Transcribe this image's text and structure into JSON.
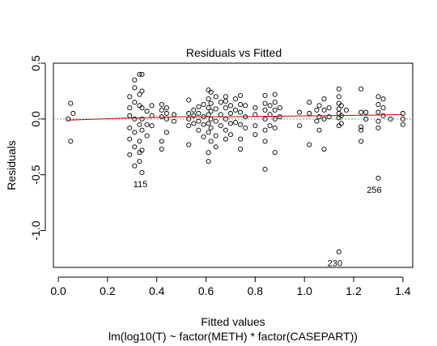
{
  "chart_data": {
    "type": "scatter",
    "title": "Residuals vs Fitted",
    "xlabel": "Fitted values",
    "subtitle": "lm(log10(T) ~ factor(METH) * factor(CASEPART))",
    "ylabel": "Residuals",
    "xlim": [
      -0.02,
      1.44
    ],
    "ylim": [
      -1.33,
      0.5
    ],
    "xticks": [
      "0.0",
      "0.2",
      "0.4",
      "0.6",
      "0.8",
      "1.0",
      "1.2",
      "1.4"
    ],
    "xtick_values": [
      0,
      0.2,
      0.4,
      0.6,
      0.8,
      1.0,
      1.2,
      1.4
    ],
    "yticks": [
      "-1.0",
      "-0.5",
      "0.0",
      "0.5"
    ],
    "ytick_values": [
      -1.0,
      -0.5,
      0.0,
      0.5
    ],
    "point_symbol": "open-circle",
    "smoother_color": "#cc0000",
    "reference_line": {
      "y": 0,
      "style": "dotted",
      "color": "#888888"
    },
    "smoother": {
      "x": [
        0.04,
        0.3,
        0.5,
        0.7,
        0.9,
        1.1,
        1.3,
        1.4
      ],
      "y": [
        -0.01,
        0.01,
        0.02,
        0.02,
        0.025,
        0.03,
        0.035,
        0.04
      ]
    },
    "labels": [
      {
        "text": "115",
        "x": 0.35,
        "y": -0.48
      },
      {
        "text": "256",
        "x": 1.3,
        "y": -0.53
      },
      {
        "text": "230",
        "x": 1.14,
        "y": -1.19
      }
    ],
    "points": [
      [
        0.04,
        0.0
      ],
      [
        0.05,
        -0.2
      ],
      [
        0.05,
        0.14
      ],
      [
        0.06,
        0.05
      ],
      [
        0.29,
        0.2
      ],
      [
        0.29,
        0.1
      ],
      [
        0.29,
        0.03
      ],
      [
        0.29,
        -0.08
      ],
      [
        0.29,
        -0.18
      ],
      [
        0.29,
        -0.32
      ],
      [
        0.31,
        0.35
      ],
      [
        0.31,
        0.28
      ],
      [
        0.31,
        0.15
      ],
      [
        0.31,
        0.0
      ],
      [
        0.31,
        -0.12
      ],
      [
        0.31,
        -0.25
      ],
      [
        0.31,
        -0.42
      ],
      [
        0.33,
        0.4
      ],
      [
        0.33,
        0.22
      ],
      [
        0.33,
        0.12
      ],
      [
        0.33,
        -0.05
      ],
      [
        0.33,
        -0.2
      ],
      [
        0.33,
        -0.3
      ],
      [
        0.33,
        -0.38
      ],
      [
        0.34,
        0.4
      ],
      [
        0.34,
        0.25
      ],
      [
        0.34,
        0.1
      ],
      [
        0.34,
        0.0
      ],
      [
        0.34,
        -0.1
      ],
      [
        0.34,
        -0.28
      ],
      [
        0.34,
        -0.48
      ],
      [
        0.36,
        0.07
      ],
      [
        0.36,
        -0.05
      ],
      [
        0.36,
        -0.15
      ],
      [
        0.38,
        0.12
      ],
      [
        0.38,
        0.03
      ],
      [
        0.38,
        -0.06
      ],
      [
        0.42,
        0.13
      ],
      [
        0.42,
        0.08
      ],
      [
        0.42,
        0.02
      ],
      [
        0.42,
        -0.2
      ],
      [
        0.42,
        -0.27
      ],
      [
        0.44,
        0.1
      ],
      [
        0.44,
        0.05
      ],
      [
        0.44,
        0.0
      ],
      [
        0.44,
        -0.12
      ],
      [
        0.47,
        0.04
      ],
      [
        0.47,
        -0.02
      ],
      [
        0.53,
        0.17
      ],
      [
        0.53,
        0.05
      ],
      [
        0.53,
        0.0
      ],
      [
        0.53,
        -0.06
      ],
      [
        0.53,
        -0.23
      ],
      [
        0.55,
        0.08
      ],
      [
        0.55,
        0.03
      ],
      [
        0.55,
        -0.04
      ],
      [
        0.57,
        0.11
      ],
      [
        0.57,
        0.05
      ],
      [
        0.57,
        -0.02
      ],
      [
        0.57,
        -0.1
      ],
      [
        0.59,
        0.13
      ],
      [
        0.59,
        0.02
      ],
      [
        0.59,
        -0.05
      ],
      [
        0.59,
        -0.16
      ],
      [
        0.61,
        0.26
      ],
      [
        0.61,
        0.18
      ],
      [
        0.61,
        0.1
      ],
      [
        0.61,
        0.04
      ],
      [
        0.61,
        -0.04
      ],
      [
        0.61,
        -0.12
      ],
      [
        0.61,
        -0.3
      ],
      [
        0.61,
        -0.38
      ],
      [
        0.62,
        0.24
      ],
      [
        0.62,
        0.14
      ],
      [
        0.62,
        0.07
      ],
      [
        0.62,
        0.0
      ],
      [
        0.62,
        -0.08
      ],
      [
        0.62,
        -0.2
      ],
      [
        0.64,
        0.2
      ],
      [
        0.64,
        0.09
      ],
      [
        0.64,
        -0.02
      ],
      [
        0.64,
        -0.15
      ],
      [
        0.64,
        -0.25
      ],
      [
        0.66,
        0.15
      ],
      [
        0.66,
        0.04
      ],
      [
        0.66,
        -0.06
      ],
      [
        0.68,
        0.2
      ],
      [
        0.68,
        0.16
      ],
      [
        0.68,
        0.1
      ],
      [
        0.68,
        0.0
      ],
      [
        0.68,
        -0.1
      ],
      [
        0.68,
        -0.18
      ],
      [
        0.7,
        0.12
      ],
      [
        0.7,
        0.05
      ],
      [
        0.7,
        -0.04
      ],
      [
        0.7,
        -0.14
      ],
      [
        0.72,
        0.18
      ],
      [
        0.72,
        0.08
      ],
      [
        0.72,
        -0.03
      ],
      [
        0.74,
        0.21
      ],
      [
        0.74,
        0.13
      ],
      [
        0.74,
        0.06
      ],
      [
        0.74,
        -0.05
      ],
      [
        0.74,
        -0.18
      ],
      [
        0.74,
        -0.27
      ],
      [
        0.76,
        0.12
      ],
      [
        0.76,
        0.02
      ],
      [
        0.76,
        -0.08
      ],
      [
        0.8,
        0.1
      ],
      [
        0.8,
        0.04
      ],
      [
        0.8,
        -0.06
      ],
      [
        0.8,
        -0.14
      ],
      [
        0.84,
        0.21
      ],
      [
        0.84,
        0.14
      ],
      [
        0.84,
        0.08
      ],
      [
        0.84,
        0.0
      ],
      [
        0.84,
        -0.1
      ],
      [
        0.84,
        -0.2
      ],
      [
        0.84,
        -0.45
      ],
      [
        0.86,
        0.12
      ],
      [
        0.86,
        0.04
      ],
      [
        0.86,
        -0.06
      ],
      [
        0.88,
        0.22
      ],
      [
        0.88,
        0.15
      ],
      [
        0.88,
        0.08
      ],
      [
        0.88,
        0.0
      ],
      [
        0.88,
        -0.08
      ],
      [
        0.88,
        -0.3
      ],
      [
        0.9,
        0.1
      ],
      [
        0.9,
        0.02
      ],
      [
        0.98,
        0.06
      ],
      [
        0.98,
        -0.06
      ],
      [
        1.02,
        0.15
      ],
      [
        1.02,
        0.05
      ],
      [
        1.02,
        -0.23
      ],
      [
        1.05,
        0.08
      ],
      [
        1.05,
        -0.02
      ],
      [
        1.06,
        0.12
      ],
      [
        1.06,
        0.02
      ],
      [
        1.06,
        -0.1
      ],
      [
        1.08,
        0.18
      ],
      [
        1.08,
        0.08
      ],
      [
        1.08,
        0.0
      ],
      [
        1.08,
        -0.27
      ],
      [
        1.1,
        0.1
      ],
      [
        1.1,
        0.02
      ],
      [
        1.14,
        0.27
      ],
      [
        1.14,
        0.2
      ],
      [
        1.14,
        0.14
      ],
      [
        1.14,
        0.09
      ],
      [
        1.14,
        0.05
      ],
      [
        1.14,
        0.01
      ],
      [
        1.14,
        -0.06
      ],
      [
        1.14,
        -1.19
      ],
      [
        1.15,
        0.12
      ],
      [
        1.15,
        0.03
      ],
      [
        1.15,
        -0.04
      ],
      [
        1.17,
        0.08
      ],
      [
        1.23,
        0.27
      ],
      [
        1.23,
        0.06
      ],
      [
        1.23,
        -0.07
      ],
      [
        1.23,
        -0.1
      ],
      [
        1.23,
        -0.2
      ],
      [
        1.25,
        0.0
      ],
      [
        1.25,
        0.06
      ],
      [
        1.3,
        0.2
      ],
      [
        1.3,
        0.13
      ],
      [
        1.3,
        0.06
      ],
      [
        1.3,
        -0.02
      ],
      [
        1.3,
        -0.08
      ],
      [
        1.3,
        -0.53
      ],
      [
        1.32,
        0.18
      ],
      [
        1.32,
        0.1
      ],
      [
        1.32,
        0.03
      ],
      [
        1.35,
        0.0
      ],
      [
        1.4,
        0.05
      ],
      [
        1.4,
        0.0
      ],
      [
        1.4,
        -0.05
      ]
    ]
  }
}
